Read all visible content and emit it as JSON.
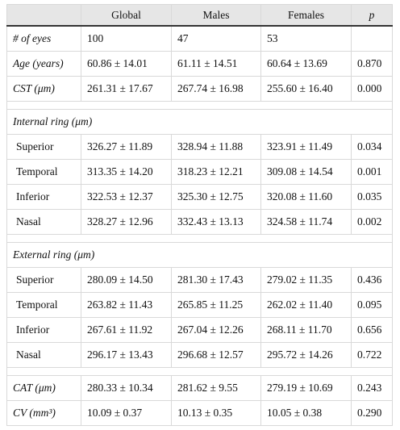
{
  "table": {
    "header": [
      "Global",
      "Males",
      "Females",
      "p"
    ],
    "groups": [
      {
        "rows": [
          {
            "label": "# of eyes",
            "cells": [
              "100",
              "47",
              "53"
            ]
          },
          {
            "label": "Age (years)",
            "cells": [
              "60.86 ± 14.01",
              "61.11 ± 14.51",
              "60.64 ± 13.69",
              "0.870"
            ]
          },
          {
            "label": "CST (μm)",
            "cells": [
              "261.31 ± 17.67",
              "267.74 ± 16.98",
              "255.60 ± 16.40",
              "0.000"
            ]
          }
        ]
      },
      {
        "title": "Internal ring (μm)",
        "rows": [
          {
            "label": "Superior",
            "cells": [
              "326.27 ± 11.89",
              "328.94 ± 11.88",
              "323.91 ± 11.49",
              "0.034"
            ]
          },
          {
            "label": "Temporal",
            "cells": [
              "313.35 ± 14.20",
              "318.23 ± 12.21",
              "309.08 ± 14.54",
              "0.001"
            ]
          },
          {
            "label": "Inferior",
            "cells": [
              "322.53 ± 12.37",
              "325.30 ± 12.75",
              "320.08 ± 11.60",
              "0.035"
            ]
          },
          {
            "label": "Nasal",
            "cells": [
              "328.27 ± 12.96",
              "332.43 ± 13.13",
              "324.58 ± 11.74",
              "0.002"
            ]
          }
        ]
      },
      {
        "title": "External ring (μm)",
        "rows": [
          {
            "label": "Superior",
            "cells": [
              "280.09 ± 14.50",
              "281.30 ± 17.43",
              "279.02 ± 11.35",
              "0.436"
            ]
          },
          {
            "label": "Temporal",
            "cells": [
              "263.82 ± 11.43",
              "265.85 ± 11.25",
              "262.02 ± 11.40",
              "0.095"
            ]
          },
          {
            "label": "Inferior",
            "cells": [
              "267.61 ± 11.92",
              "267.04 ± 12.26",
              "268.11 ± 11.70",
              "0.656"
            ]
          },
          {
            "label": "Nasal",
            "cells": [
              "296.17 ± 13.43",
              "296.68 ± 12.57",
              "295.72 ± 14.26",
              "0.722"
            ]
          }
        ]
      },
      {
        "rows": [
          {
            "label": "CAT (μm)",
            "cells": [
              "280.33 ± 10.34",
              "281.62 ± 9.55",
              "279.19 ± 10.69",
              "0.243"
            ]
          },
          {
            "label": "CV (mm³)",
            "cells": [
              "10.09 ± 0.37",
              "10.13 ± 0.35",
              "10.05 ± 0.38",
              "0.290"
            ]
          }
        ]
      }
    ]
  }
}
